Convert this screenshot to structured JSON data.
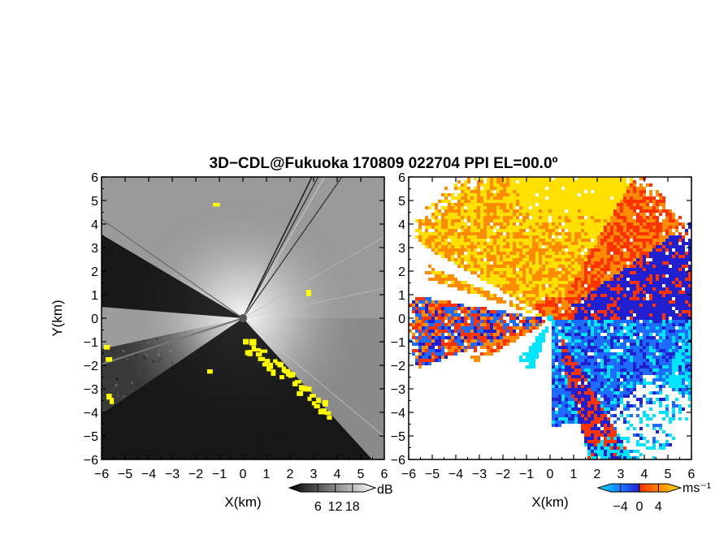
{
  "title": "3D−CDL@Fukuoka 170809 022704 PPI EL=00.0º",
  "chart_data": [
    {
      "type": "heatmap",
      "panel": "reflectivity",
      "xlabel": "X(km)",
      "ylabel": "Y(km)",
      "xlim": [
        -6,
        6
      ],
      "ylim": [
        -6,
        6
      ],
      "x_ticks": [
        "−6",
        "−5",
        "−4",
        "−3",
        "−2",
        "−1",
        "0",
        "1",
        "2",
        "3",
        "4",
        "5",
        "6"
      ],
      "y_ticks": [
        "6",
        "5",
        "4",
        "3",
        "2",
        "1",
        "0",
        "−1",
        "−2",
        "−3",
        "−4",
        "−5",
        "−6"
      ],
      "colorbar": {
        "unit": "dB",
        "tick_labels": [
          "6",
          "12",
          "18"
        ],
        "ticks": [
          6,
          12,
          18
        ],
        "range": [
          0,
          22
        ]
      },
      "colors": {
        "low": "#000000",
        "high": "#ffffff",
        "flag": "#ffff00"
      },
      "blocked_sectors_deg": [
        [
          120,
          180
        ],
        [
          197,
          318
        ]
      ]
    },
    {
      "type": "heatmap",
      "panel": "doppler_velocity",
      "xlabel": "X(km)",
      "xlim": [
        -6,
        6
      ],
      "ylim": [
        -6,
        6
      ],
      "x_ticks": [
        "−6",
        "−5",
        "−4",
        "−3",
        "−2",
        "−1",
        "0",
        "1",
        "2",
        "3",
        "4",
        "5",
        "6"
      ],
      "y_ticks": [
        "6",
        "5",
        "4",
        "3",
        "2",
        "1",
        "0",
        "−1",
        "−2",
        "−3",
        "−4",
        "−5",
        "−6"
      ],
      "colorbar": {
        "unit": "ms⁻¹",
        "tick_labels": [
          "−4",
          "0",
          "4"
        ],
        "ticks": [
          -4,
          0,
          4
        ],
        "range": [
          -6,
          6
        ]
      },
      "colors": {
        "neg_far": "#00e5ff",
        "neg": "#1e6bff",
        "zero_low": "#2020d0",
        "zero_high": "#ff3300",
        "pos": "#ff8c00",
        "pos_far": "#ffe000"
      }
    }
  ]
}
